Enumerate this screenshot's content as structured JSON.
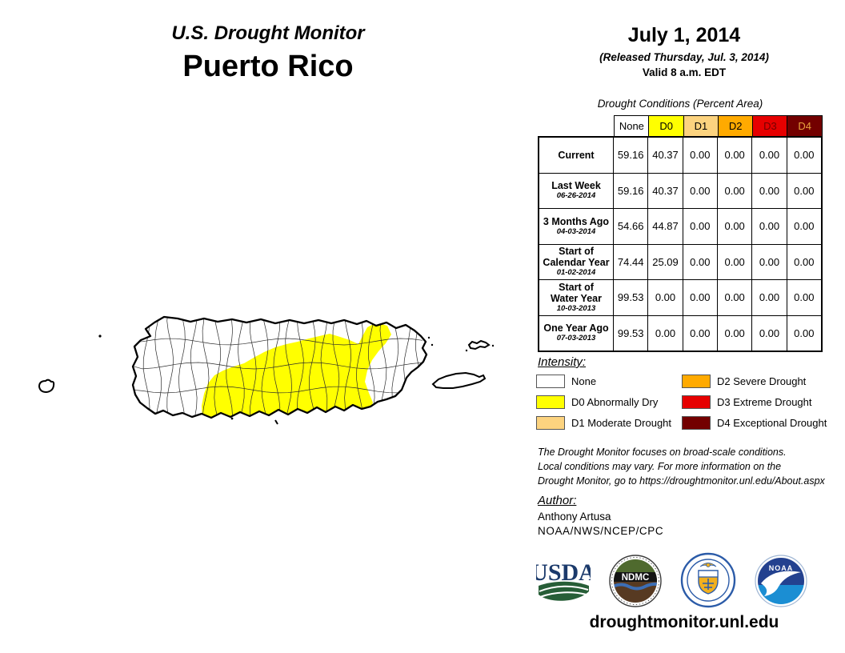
{
  "header": {
    "title": "U.S. Drought Monitor",
    "region": "Puerto Rico"
  },
  "date_block": {
    "date": "July 1, 2014",
    "released": "(Released Thursday, Jul. 3, 2014)",
    "valid": "Valid 8 a.m. EDT"
  },
  "table": {
    "caption": "Drought Conditions (Percent Area)",
    "columns": [
      {
        "label": "None",
        "color": "#FFFFFF",
        "text_color": "#000000"
      },
      {
        "label": "D0",
        "color": "#FFFF00",
        "text_color": "#000000"
      },
      {
        "label": "D1",
        "color": "#FCD37F",
        "text_color": "#000000"
      },
      {
        "label": "D2",
        "color": "#FFAA00",
        "text_color": "#000000"
      },
      {
        "label": "D3",
        "color": "#E60000",
        "text_color": "#730000"
      },
      {
        "label": "D4",
        "color": "#730000",
        "text_color": "#E8A33D"
      }
    ],
    "rows": [
      {
        "l1": "Current",
        "l2": "",
        "date": "",
        "values": [
          "59.16",
          "40.37",
          "0.00",
          "0.00",
          "0.00",
          "0.00"
        ]
      },
      {
        "l1": "Last Week",
        "l2": "",
        "date": "06-26-2014",
        "values": [
          "59.16",
          "40.37",
          "0.00",
          "0.00",
          "0.00",
          "0.00"
        ]
      },
      {
        "l1": "3 Months Ago",
        "l2": "",
        "date": "04-03-2014",
        "values": [
          "54.66",
          "44.87",
          "0.00",
          "0.00",
          "0.00",
          "0.00"
        ]
      },
      {
        "l1": "Start of",
        "l2": "Calendar Year",
        "date": "01-02-2014",
        "values": [
          "74.44",
          "25.09",
          "0.00",
          "0.00",
          "0.00",
          "0.00"
        ]
      },
      {
        "l1": "Start of",
        "l2": "Water Year",
        "date": "10-03-2013",
        "values": [
          "99.53",
          "0.00",
          "0.00",
          "0.00",
          "0.00",
          "0.00"
        ]
      },
      {
        "l1": "One Year Ago",
        "l2": "",
        "date": "07-03-2013",
        "values": [
          "99.53",
          "0.00",
          "0.00",
          "0.00",
          "0.00",
          "0.00"
        ]
      }
    ]
  },
  "legend": {
    "heading": "Intensity:",
    "items": [
      {
        "label": "None",
        "color": "#FFFFFF"
      },
      {
        "label": "D0 Abnormally Dry",
        "color": "#FFFF00"
      },
      {
        "label": "D1 Moderate Drought",
        "color": "#FCD37F"
      },
      {
        "label": "D2 Severe Drought",
        "color": "#FFAA00"
      },
      {
        "label": "D3 Extreme Drought",
        "color": "#E60000"
      },
      {
        "label": "D4 Exceptional Drought",
        "color": "#730000"
      }
    ]
  },
  "disclaimer": {
    "lines": [
      "The Drought Monitor focuses on broad-scale conditions.",
      "Local conditions may vary. For more information on the",
      "Drought Monitor, go to https://droughtmonitor.unl.edu/About.aspx"
    ]
  },
  "author": {
    "heading": "Author:",
    "name": "Anthony Artusa",
    "org": "NOAA/NWS/NCEP/CPC"
  },
  "logos": {
    "usda": {
      "label": "USDA"
    },
    "ndmc": {
      "label": "NDMC"
    },
    "commerce": {
      "label": ""
    },
    "noaa": {
      "label": "NOAA"
    }
  },
  "footer": {
    "url": "droughtmonitor.unl.edu"
  },
  "map": {
    "region": "Puerto Rico",
    "none_color": "#FFFFFF",
    "d0_color": "#FFFF00",
    "coast_color": "#000000"
  },
  "chart_data": {
    "type": "table",
    "title": "Drought Conditions (Percent Area)",
    "categories": [
      "None",
      "D0",
      "D1",
      "D2",
      "D3",
      "D4"
    ],
    "series": [
      {
        "name": "Current",
        "values": [
          59.16,
          40.37,
          0.0,
          0.0,
          0.0,
          0.0
        ]
      },
      {
        "name": "Last Week (06-26-2014)",
        "values": [
          59.16,
          40.37,
          0.0,
          0.0,
          0.0,
          0.0
        ]
      },
      {
        "name": "3 Months Ago (04-03-2014)",
        "values": [
          54.66,
          44.87,
          0.0,
          0.0,
          0.0,
          0.0
        ]
      },
      {
        "name": "Start of Calendar Year (01-02-2014)",
        "values": [
          74.44,
          25.09,
          0.0,
          0.0,
          0.0,
          0.0
        ]
      },
      {
        "name": "Start of Water Year (10-03-2013)",
        "values": [
          99.53,
          0.0,
          0.0,
          0.0,
          0.0,
          0.0
        ]
      },
      {
        "name": "One Year Ago (07-03-2013)",
        "values": [
          99.53,
          0.0,
          0.0,
          0.0,
          0.0,
          0.0
        ]
      }
    ]
  }
}
